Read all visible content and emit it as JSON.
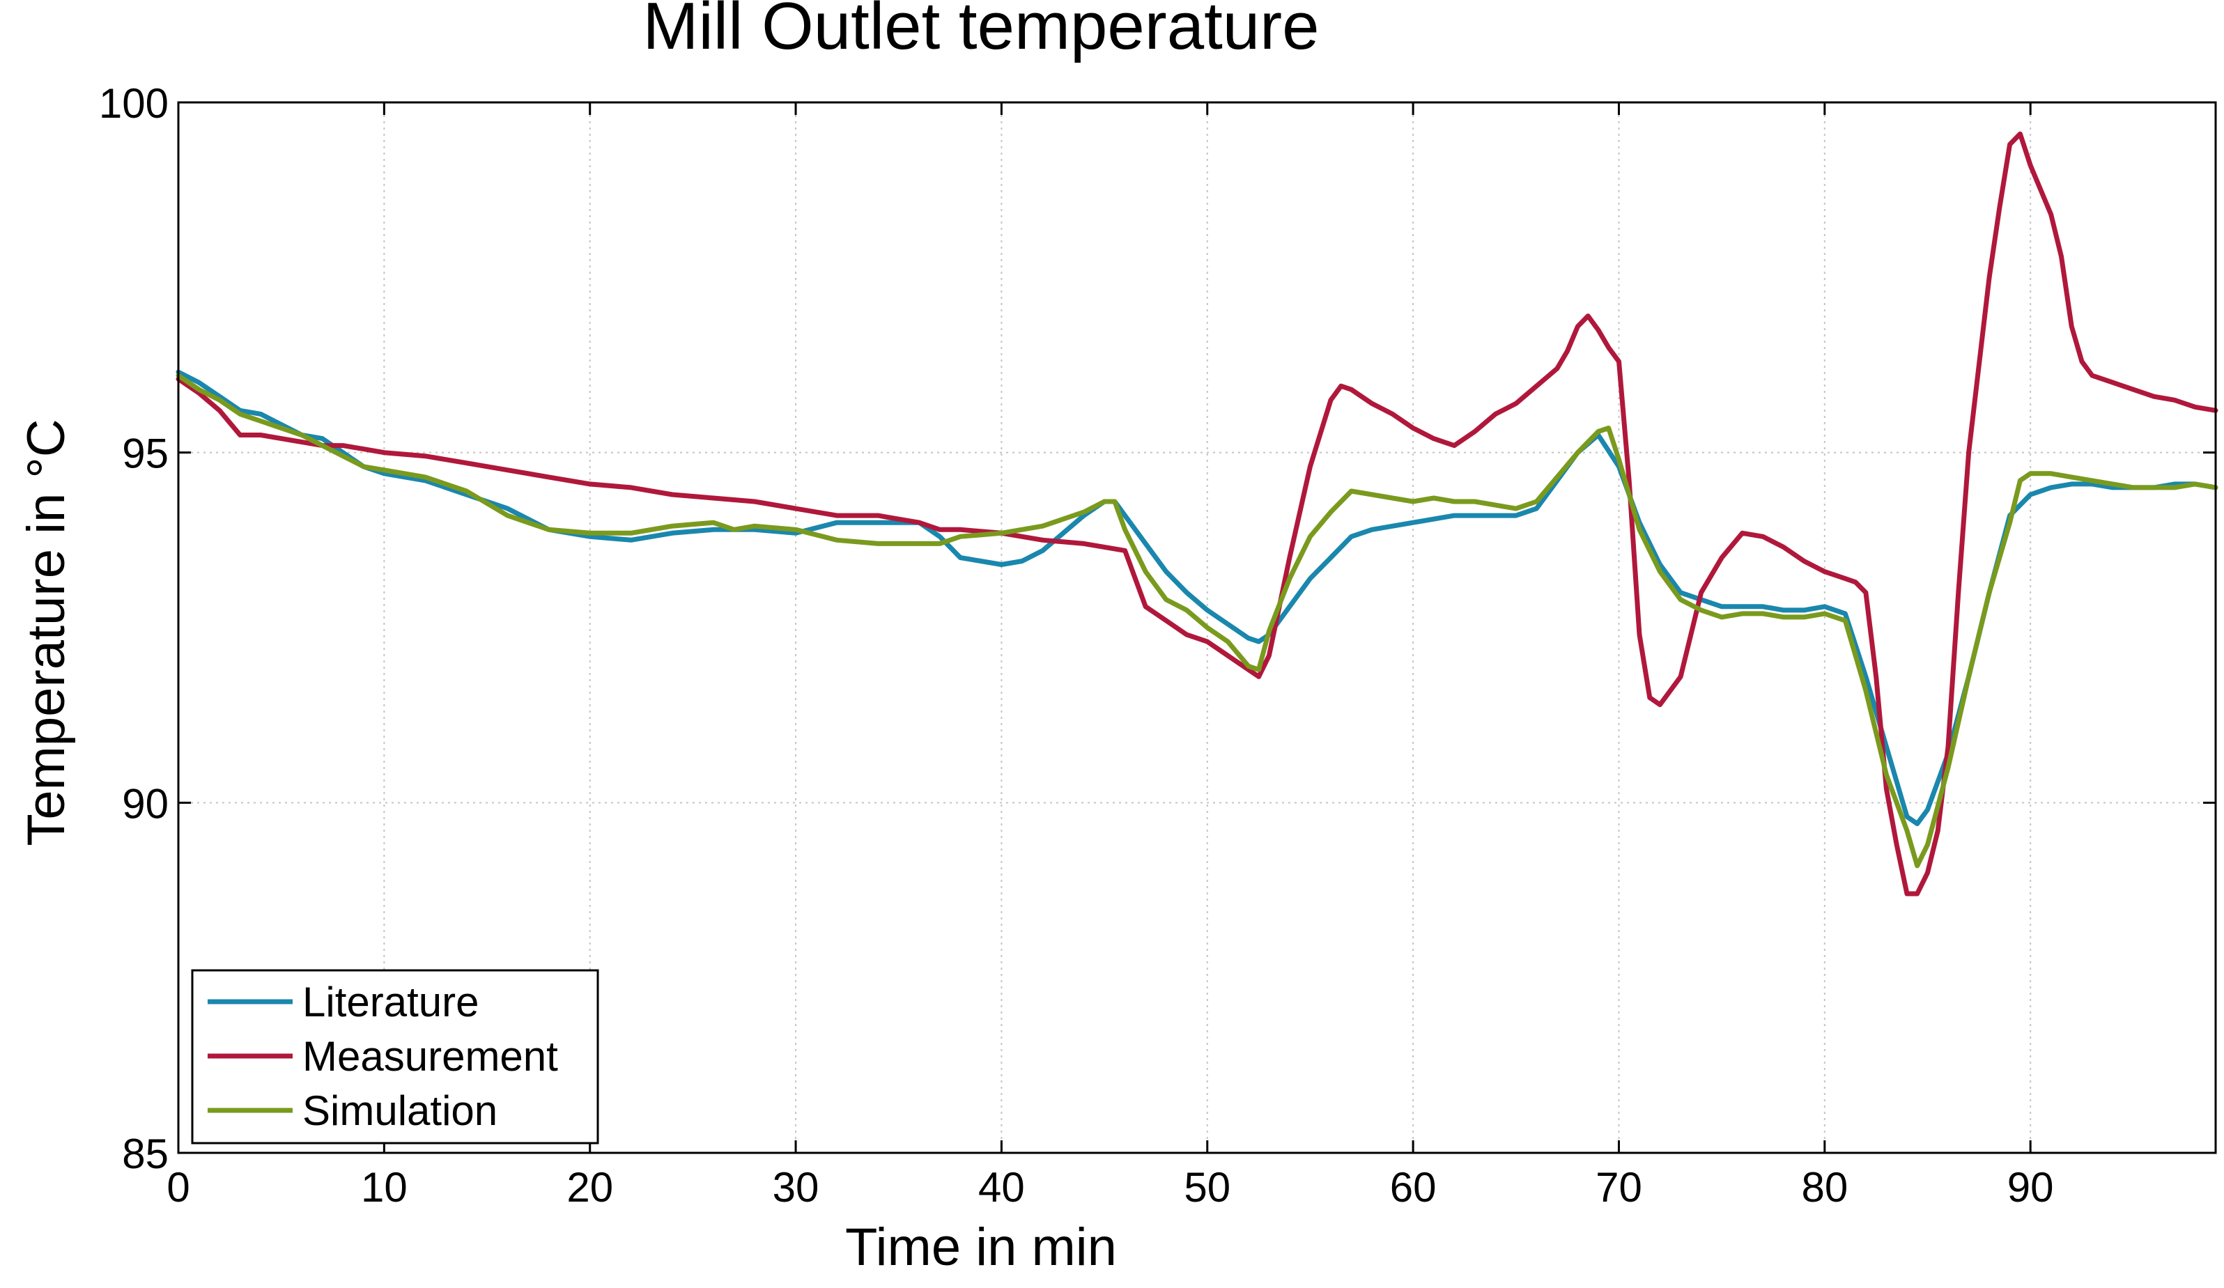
{
  "chart_data": {
    "type": "line",
    "title": "Mill Outlet temperature",
    "xlabel": "Time in min",
    "ylabel": "Temperature in °C",
    "xlim": [
      0,
      99
    ],
    "ylim": [
      85,
      100
    ],
    "xticks": [
      0,
      10,
      20,
      30,
      40,
      50,
      60,
      70,
      80,
      90
    ],
    "yticks": [
      85,
      90,
      95,
      100
    ],
    "grid": true,
    "legend_position": "bottom-left",
    "series": [
      {
        "name": "Literature",
        "color": "#1a87ad",
        "x": [
          0,
          1,
          2,
          3,
          4,
          5,
          6,
          7,
          8,
          9,
          10,
          12,
          14,
          16,
          18,
          20,
          22,
          24,
          26,
          28,
          30,
          32,
          34,
          36,
          37,
          38,
          39,
          40,
          41,
          42,
          43,
          44,
          45,
          45.5,
          46,
          47,
          48,
          49,
          50,
          51,
          52,
          52.5,
          53,
          54,
          55,
          56,
          57,
          58,
          60,
          62,
          64,
          65,
          66,
          67,
          68,
          69,
          70,
          71,
          72,
          73,
          74,
          75,
          76,
          77,
          78,
          79,
          80,
          81,
          82,
          83,
          84,
          84.5,
          85,
          86,
          87,
          88,
          89,
          90,
          91,
          92,
          93,
          94,
          95,
          96,
          97,
          98,
          99
        ],
        "y": [
          96.15,
          96.0,
          95.8,
          95.6,
          95.55,
          95.4,
          95.25,
          95.2,
          95.0,
          94.8,
          94.7,
          94.6,
          94.4,
          94.2,
          93.9,
          93.8,
          93.75,
          93.85,
          93.9,
          93.9,
          93.85,
          94.0,
          94.0,
          94.0,
          93.8,
          93.5,
          93.45,
          93.4,
          93.45,
          93.6,
          93.85,
          94.1,
          94.3,
          94.3,
          94.1,
          93.7,
          93.3,
          93.0,
          92.75,
          92.55,
          92.35,
          92.3,
          92.4,
          92.8,
          93.2,
          93.5,
          93.8,
          93.9,
          94.0,
          94.1,
          94.1,
          94.1,
          94.2,
          94.6,
          95.0,
          95.25,
          94.8,
          94.0,
          93.4,
          93.0,
          92.9,
          92.8,
          92.8,
          92.8,
          92.75,
          92.75,
          92.8,
          92.7,
          91.8,
          90.8,
          89.8,
          89.7,
          89.9,
          90.7,
          91.8,
          93.0,
          94.1,
          94.4,
          94.5,
          94.55,
          94.55,
          94.5,
          94.5,
          94.5,
          94.55,
          94.55,
          94.5
        ]
      },
      {
        "name": "Measurement",
        "color": "#b0183b",
        "x": [
          0,
          1,
          2,
          3,
          4,
          5,
          6,
          7,
          8,
          9,
          10,
          12,
          14,
          16,
          18,
          20,
          22,
          24,
          26,
          28,
          30,
          32,
          34,
          36,
          37,
          38,
          40,
          42,
          44,
          45,
          46,
          47,
          48,
          49,
          50,
          51,
          52,
          52.5,
          53,
          54,
          55,
          56,
          56.5,
          57,
          58,
          59,
          60,
          61,
          62,
          63,
          64,
          65,
          66,
          67,
          67.5,
          68,
          68.5,
          69,
          69.5,
          70,
          70.5,
          71,
          71.5,
          72,
          73,
          74,
          75,
          76,
          77,
          78,
          79,
          80,
          81,
          81.5,
          82,
          82.5,
          83,
          83.5,
          84,
          84.5,
          85,
          85.5,
          86,
          86.5,
          87,
          88,
          88.5,
          89,
          89.5,
          90,
          91,
          91.5,
          92,
          92.5,
          93,
          94,
          95,
          96,
          97,
          98,
          99
        ],
        "y": [
          96.05,
          95.85,
          95.6,
          95.25,
          95.25,
          95.2,
          95.15,
          95.1,
          95.1,
          95.05,
          95.0,
          94.95,
          94.85,
          94.75,
          94.65,
          94.55,
          94.5,
          94.4,
          94.35,
          94.3,
          94.2,
          94.1,
          94.1,
          94.0,
          93.9,
          93.9,
          93.85,
          93.75,
          93.7,
          93.65,
          93.6,
          92.8,
          92.6,
          92.4,
          92.3,
          92.1,
          91.9,
          91.8,
          92.1,
          93.5,
          94.8,
          95.75,
          95.95,
          95.9,
          95.7,
          95.55,
          95.35,
          95.2,
          95.1,
          95.3,
          95.55,
          95.7,
          95.95,
          96.2,
          96.45,
          96.8,
          96.95,
          96.75,
          96.5,
          96.3,
          94.6,
          92.4,
          91.5,
          91.4,
          91.8,
          93.0,
          93.5,
          93.85,
          93.8,
          93.65,
          93.45,
          93.3,
          93.2,
          93.15,
          93.0,
          91.8,
          90.2,
          89.4,
          88.7,
          88.7,
          89.0,
          89.6,
          90.8,
          93.0,
          95.0,
          97.5,
          98.5,
          99.4,
          99.55,
          99.1,
          98.4,
          97.8,
          96.8,
          96.3,
          96.1,
          96.0,
          95.9,
          95.8,
          95.75,
          95.65,
          95.6
        ]
      },
      {
        "name": "Simulation",
        "color": "#7a9a1e",
        "x": [
          0,
          1,
          2,
          3,
          4,
          5,
          6,
          7,
          8,
          9,
          10,
          12,
          14,
          16,
          18,
          20,
          22,
          24,
          26,
          27,
          28,
          30,
          32,
          34,
          36,
          37,
          38,
          40,
          42,
          44,
          45,
          45.5,
          46,
          47,
          48,
          49,
          50,
          51,
          52,
          52.5,
          53,
          54,
          55,
          56,
          57,
          58,
          59,
          60,
          61,
          62,
          63,
          64,
          65,
          66,
          67,
          68,
          69,
          69.5,
          70,
          71,
          72,
          73,
          74,
          75,
          76,
          77,
          78,
          79,
          80,
          81,
          82,
          83,
          84,
          84.5,
          85,
          86,
          87,
          88,
          89,
          89.5,
          90,
          91,
          92,
          93,
          94,
          95,
          96,
          97,
          98,
          99
        ],
        "y": [
          96.1,
          95.9,
          95.75,
          95.55,
          95.45,
          95.35,
          95.25,
          95.1,
          94.95,
          94.8,
          94.75,
          94.65,
          94.45,
          94.1,
          93.9,
          93.85,
          93.85,
          93.95,
          94.0,
          93.9,
          93.95,
          93.9,
          93.75,
          93.7,
          93.7,
          93.7,
          93.8,
          93.85,
          93.95,
          94.15,
          94.3,
          94.3,
          93.9,
          93.3,
          92.9,
          92.75,
          92.5,
          92.3,
          91.95,
          91.9,
          92.45,
          93.2,
          93.8,
          94.15,
          94.45,
          94.4,
          94.35,
          94.3,
          94.35,
          94.3,
          94.3,
          94.25,
          94.2,
          94.3,
          94.65,
          95.0,
          95.3,
          95.35,
          94.9,
          93.9,
          93.3,
          92.9,
          92.75,
          92.65,
          92.7,
          92.7,
          92.65,
          92.65,
          92.7,
          92.6,
          91.6,
          90.4,
          89.6,
          89.1,
          89.4,
          90.5,
          91.8,
          93.0,
          94.0,
          94.6,
          94.7,
          94.7,
          94.65,
          94.6,
          94.55,
          94.5,
          94.5,
          94.5,
          94.55,
          94.5
        ]
      }
    ]
  }
}
